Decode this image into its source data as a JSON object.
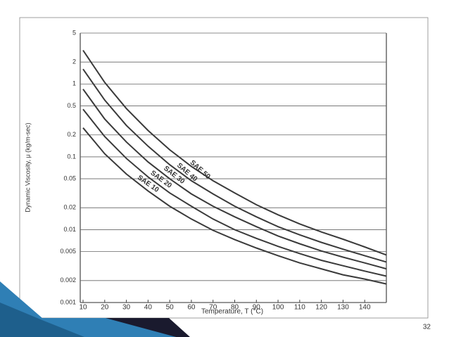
{
  "chart_data": {
    "type": "line",
    "y_label": "Dynamic Viscosity, μ (kg/m-sec)",
    "x_label": "Temperature, T (°C)",
    "yscale": "log",
    "grid": true,
    "x": [
      10,
      20,
      30,
      40,
      50,
      60,
      70,
      80,
      90,
      100,
      110,
      120,
      130,
      140,
      150
    ],
    "xlim": [
      10,
      150
    ],
    "xticks": [
      10,
      20,
      30,
      40,
      50,
      60,
      70,
      80,
      90,
      100,
      110,
      120,
      130,
      140
    ],
    "ylim": [
      0.001,
      5
    ],
    "yticks": [
      0.001,
      0.002,
      0.005,
      0.01,
      0.02,
      0.05,
      0.1,
      0.2,
      0.5,
      1,
      2,
      5
    ],
    "series": [
      {
        "name": "SAE 10",
        "color": "#3a3a3a",
        "values": [
          0.25,
          0.11,
          0.058,
          0.034,
          0.021,
          0.014,
          0.0098,
          0.0073,
          0.0056,
          0.0044,
          0.0035,
          0.0029,
          0.0024,
          0.0021,
          0.0018
        ]
      },
      {
        "name": "SAE 20",
        "color": "#3a3a3a",
        "values": [
          0.45,
          0.19,
          0.095,
          0.053,
          0.032,
          0.021,
          0.014,
          0.01,
          0.0076,
          0.0059,
          0.0047,
          0.0038,
          0.0032,
          0.0027,
          0.0023
        ]
      },
      {
        "name": "SAE 30",
        "color": "#3a3a3a",
        "values": [
          0.85,
          0.33,
          0.16,
          0.085,
          0.05,
          0.031,
          0.021,
          0.015,
          0.011,
          0.0082,
          0.0064,
          0.0051,
          0.0042,
          0.0035,
          0.0029
        ]
      },
      {
        "name": "SAE 40",
        "color": "#3a3a3a",
        "values": [
          1.6,
          0.6,
          0.27,
          0.14,
          0.078,
          0.047,
          0.031,
          0.021,
          0.015,
          0.011,
          0.0085,
          0.0067,
          0.0054,
          0.0044,
          0.0036
        ]
      },
      {
        "name": "SAE 50",
        "color": "#3a3a3a",
        "values": [
          2.9,
          1.05,
          0.46,
          0.23,
          0.125,
          0.074,
          0.047,
          0.032,
          0.022,
          0.016,
          0.012,
          0.0093,
          0.0074,
          0.0058,
          0.0045
        ]
      }
    ]
  },
  "page_number": "32"
}
